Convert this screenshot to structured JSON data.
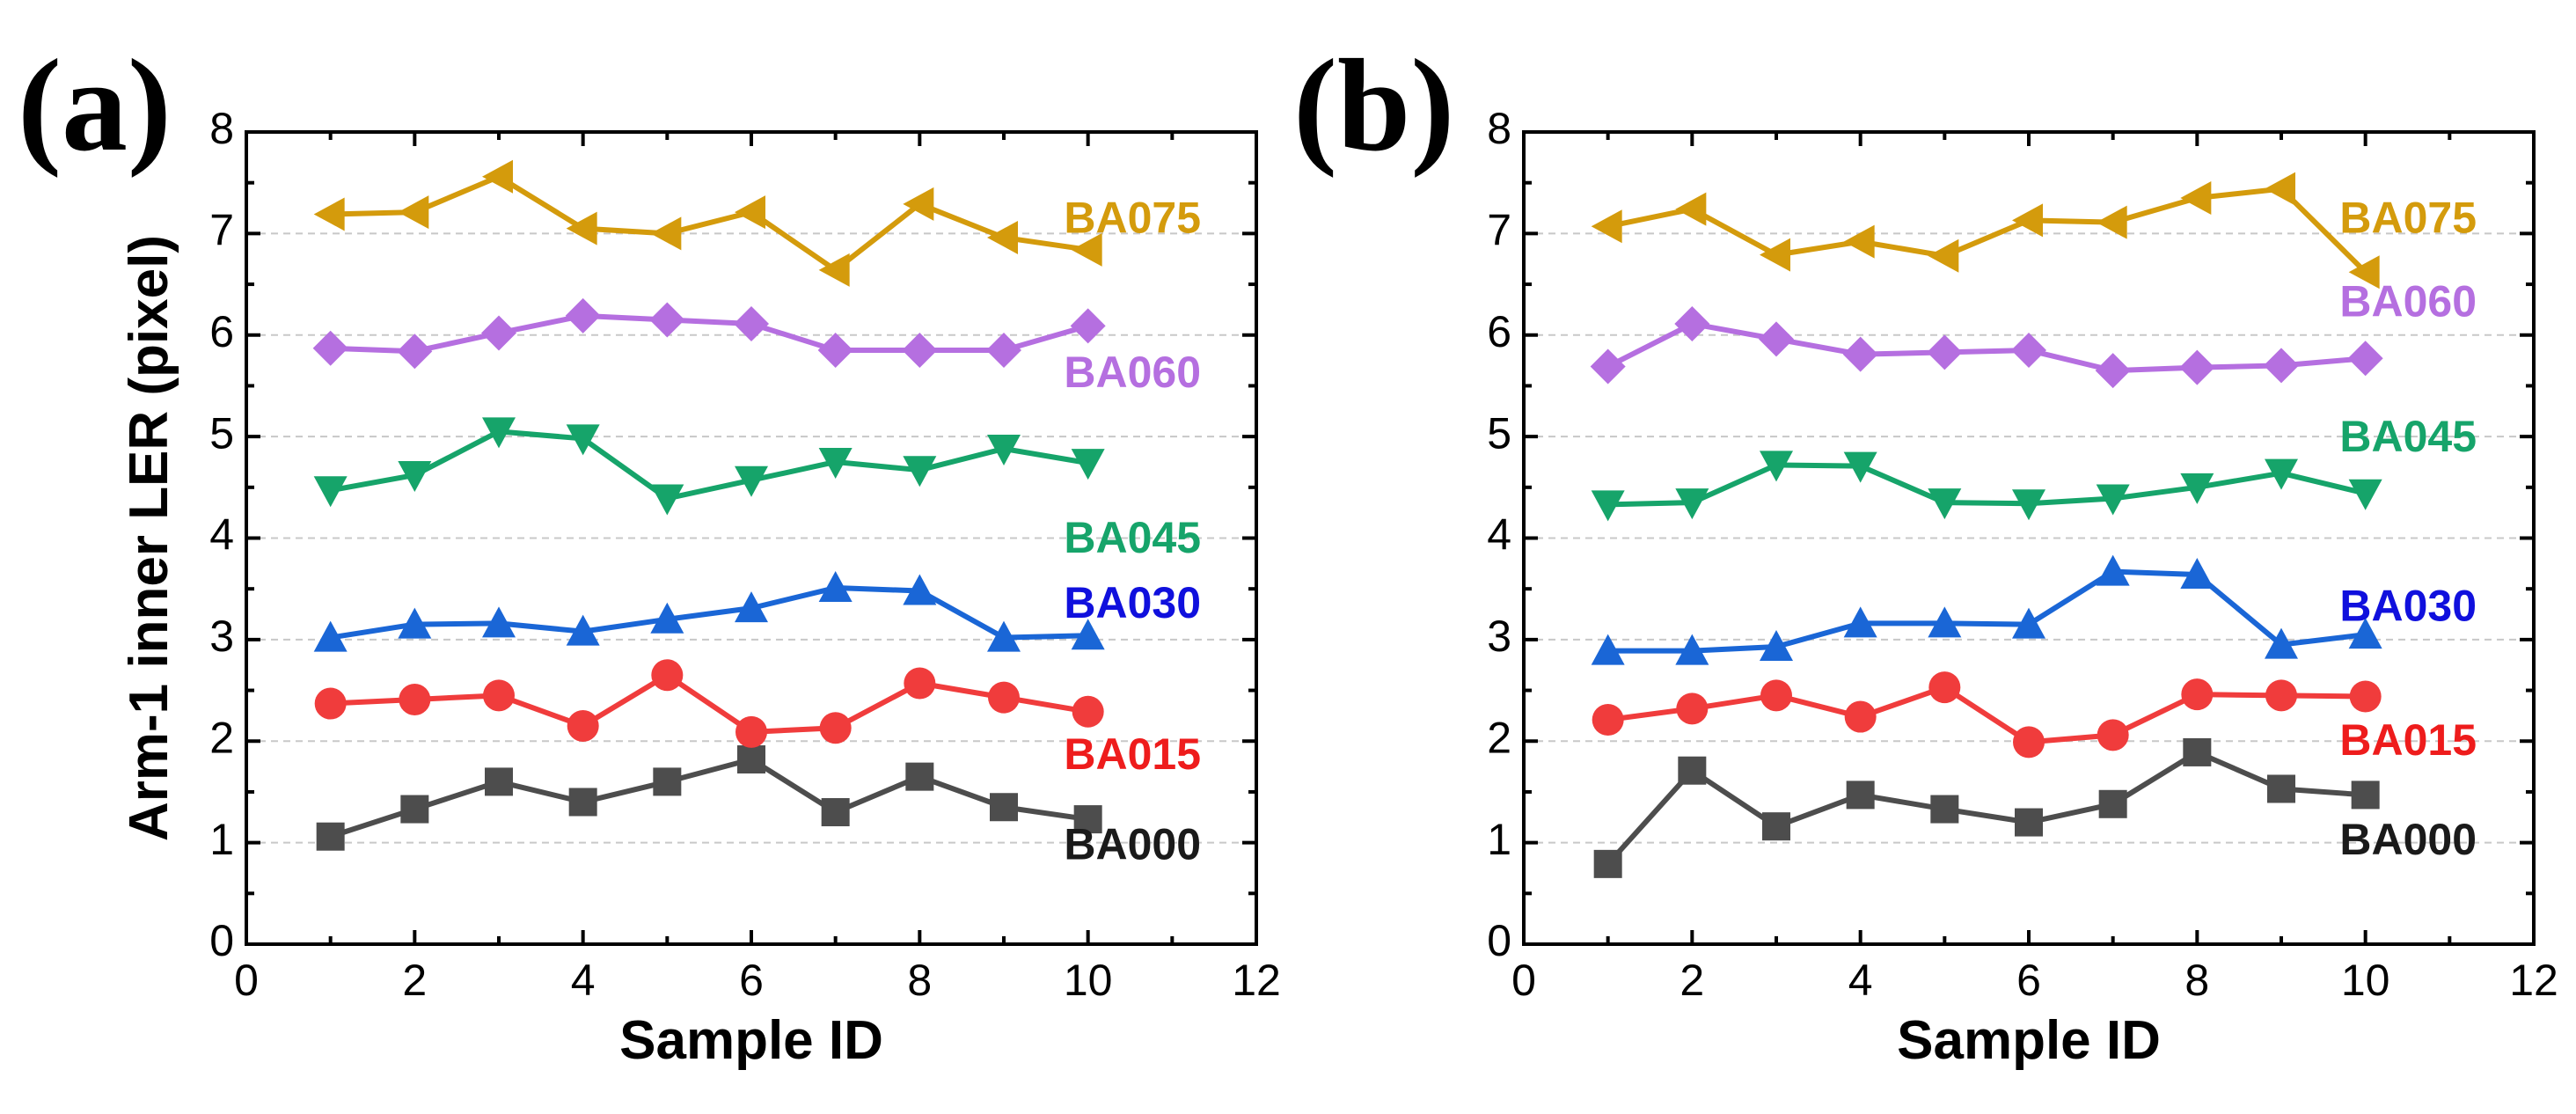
{
  "chart_data": [
    {
      "type": "line",
      "panel_label": "(a)",
      "xlabel": "Sample ID",
      "ylabel": "Arm-1 inner LER (pixel)",
      "xlim": [
        0,
        12
      ],
      "ylim": [
        0,
        8
      ],
      "xticks": [
        "0",
        "2",
        "4",
        "6",
        "8",
        "10",
        "12"
      ],
      "yticks": [
        "0",
        "1",
        "2",
        "3",
        "4",
        "5",
        "6",
        "7",
        "8"
      ],
      "grid": "horizontal dashed",
      "x": [
        1,
        2,
        3,
        4,
        5,
        6,
        7,
        8,
        9,
        10
      ],
      "series": [
        {
          "name": "BA000",
          "color": "#4d4d4d",
          "marker": "square",
          "label_color": "#1a1a1a",
          "label_value": 0.95,
          "values": [
            1.06,
            1.33,
            1.6,
            1.4,
            1.6,
            1.82,
            1.3,
            1.65,
            1.35,
            1.23
          ]
        },
        {
          "name": "BA015",
          "color": "#f03c3c",
          "marker": "circle",
          "label_color": "#ee1c1c",
          "label_value": 1.84,
          "values": [
            2.37,
            2.41,
            2.45,
            2.15,
            2.65,
            2.09,
            2.13,
            2.57,
            2.43,
            2.29
          ]
        },
        {
          "name": "BA030",
          "color": "#1a66d6",
          "marker": "triangle-up",
          "label_color": "#1010dd",
          "label_value": 3.33,
          "values": [
            3.02,
            3.15,
            3.16,
            3.08,
            3.2,
            3.31,
            3.51,
            3.48,
            3.02,
            3.04
          ]
        },
        {
          "name": "BA045",
          "color": "#16a46a",
          "marker": "triangle-down",
          "label_color": "#16a46a",
          "label_value": 3.97,
          "values": [
            4.47,
            4.62,
            5.05,
            4.98,
            4.39,
            4.57,
            4.75,
            4.67,
            4.88,
            4.74
          ]
        },
        {
          "name": "BA060",
          "color": "#b56fe0",
          "marker": "diamond",
          "label_color": "#b56fe0",
          "label_value": 5.6,
          "values": [
            5.87,
            5.84,
            6.02,
            6.19,
            6.15,
            6.11,
            5.85,
            5.85,
            5.85,
            6.09
          ]
        },
        {
          "name": "BA075",
          "color": "#d49b0c",
          "marker": "triangle-left",
          "label_color": "#d49b0c",
          "label_value": 7.12,
          "values": [
            7.19,
            7.21,
            7.56,
            7.05,
            7.0,
            7.21,
            6.64,
            7.29,
            6.96,
            6.84
          ]
        }
      ]
    },
    {
      "type": "line",
      "panel_label": "(b)",
      "xlabel": "Sample ID",
      "ylabel": "",
      "xlim": [
        0,
        12
      ],
      "ylim": [
        0,
        8
      ],
      "xticks": [
        "0",
        "2",
        "4",
        "6",
        "8",
        "10",
        "12"
      ],
      "yticks": [
        "0",
        "1",
        "2",
        "3",
        "4",
        "5",
        "6",
        "7",
        "8"
      ],
      "grid": "horizontal dashed",
      "x": [
        1,
        2,
        3,
        4,
        5,
        6,
        7,
        8,
        9,
        10
      ],
      "series": [
        {
          "name": "BA000",
          "color": "#4d4d4d",
          "marker": "square",
          "label_color": "#1a1a1a",
          "label_value": 1.0,
          "values": [
            0.79,
            1.71,
            1.16,
            1.47,
            1.33,
            1.2,
            1.38,
            1.89,
            1.53,
            1.47
          ]
        },
        {
          "name": "BA015",
          "color": "#f03c3c",
          "marker": "circle",
          "label_color": "#ee1c1c",
          "label_value": 1.98,
          "values": [
            2.21,
            2.32,
            2.45,
            2.24,
            2.53,
            1.99,
            2.06,
            2.46,
            2.45,
            2.44
          ]
        },
        {
          "name": "BA030",
          "color": "#1a66d6",
          "marker": "triangle-up",
          "label_color": "#1010dd",
          "label_value": 3.3,
          "values": [
            2.89,
            2.89,
            2.93,
            3.16,
            3.16,
            3.15,
            3.67,
            3.64,
            2.95,
            3.05
          ]
        },
        {
          "name": "BA045",
          "color": "#16a46a",
          "marker": "triangle-down",
          "label_color": "#16a46a",
          "label_value": 4.97,
          "values": [
            4.33,
            4.35,
            4.72,
            4.71,
            4.35,
            4.34,
            4.39,
            4.5,
            4.64,
            4.44
          ]
        },
        {
          "name": "BA060",
          "color": "#b56fe0",
          "marker": "diamond",
          "label_color": "#b56fe0",
          "label_value": 6.3,
          "values": [
            5.69,
            6.11,
            5.96,
            5.81,
            5.83,
            5.85,
            5.65,
            5.68,
            5.7,
            5.77
          ]
        },
        {
          "name": "BA075",
          "color": "#d49b0c",
          "marker": "triangle-left",
          "label_color": "#d49b0c",
          "label_value": 7.12,
          "values": [
            7.07,
            7.24,
            6.79,
            6.92,
            6.78,
            7.13,
            7.11,
            7.35,
            7.44,
            6.62
          ]
        }
      ]
    }
  ]
}
